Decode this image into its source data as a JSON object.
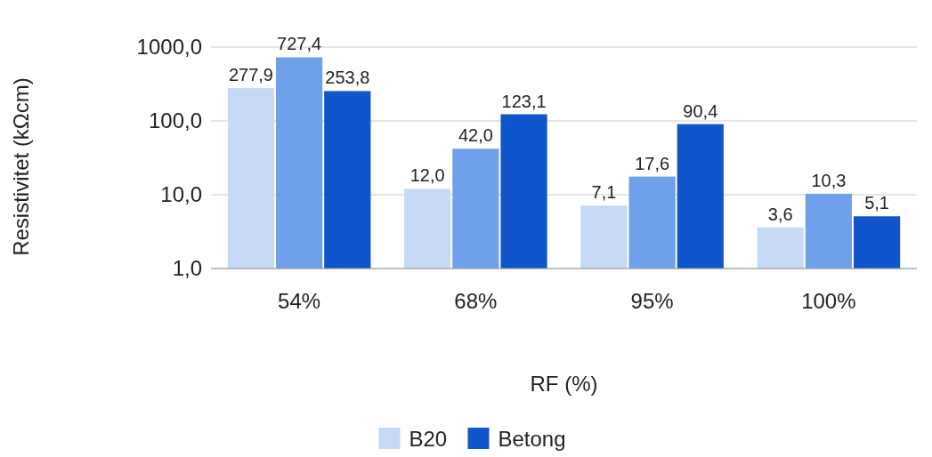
{
  "chart_data": {
    "type": "bar",
    "xlabel": "RF (%)",
    "ylabel": "Resistivitet (kΩcm)",
    "categories": [
      "54%",
      "68%",
      "95%",
      "100%"
    ],
    "series": [
      {
        "name": "B20",
        "color": "#c6d9f7",
        "values": [
          277.9,
          12.0,
          7.1,
          3.6
        ],
        "value_labels": [
          "277,9",
          "12,0",
          "7,1",
          "3,6"
        ]
      },
      {
        "color": "#6ea1ea",
        "values": [
          727.4,
          42.0,
          17.6,
          10.3
        ],
        "value_labels": [
          "727,4",
          "42,0",
          "17,6",
          "10,3"
        ]
      },
      {
        "name": "Betong",
        "color": "#1155cc",
        "values": [
          253.8,
          123.1,
          90.4,
          5.1
        ],
        "value_labels": [
          "253,8",
          "123,1",
          "90,4",
          "5,1"
        ]
      }
    ],
    "log": true,
    "ylim": [
      1,
      1000
    ],
    "yticks": [
      {
        "value": 1,
        "label": "1,0"
      },
      {
        "value": 10,
        "label": "10,0"
      },
      {
        "value": 100,
        "label": "100,0"
      },
      {
        "value": 1000,
        "label": "1000,0"
      }
    ],
    "grid": "y",
    "legend": "bottom"
  }
}
